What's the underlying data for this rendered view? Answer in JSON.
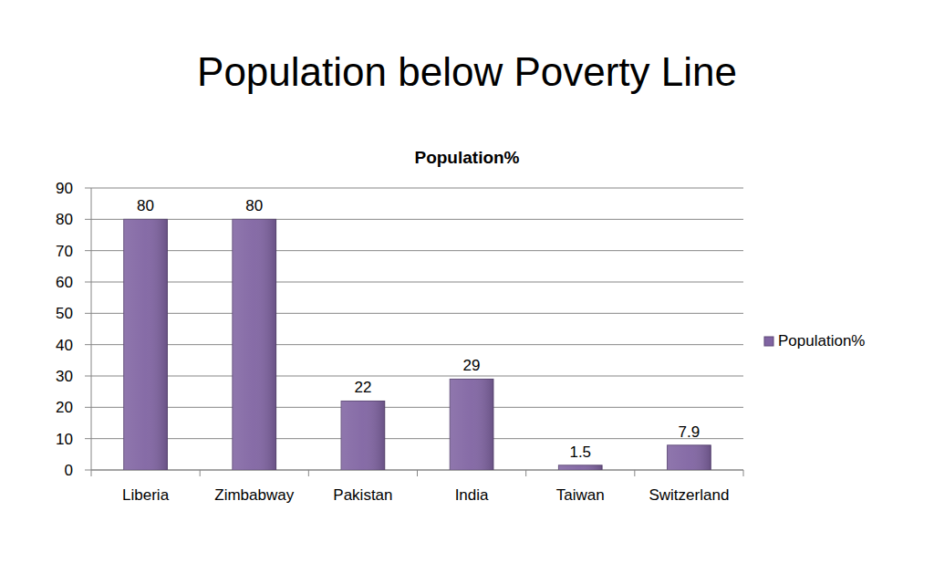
{
  "chart_data": {
    "type": "bar",
    "title": "Population below Poverty Line",
    "subtitle": "Population%",
    "categories": [
      "Liberia",
      "Zimbabway",
      "Pakistan",
      "India",
      "Taiwan",
      "Switzerland"
    ],
    "series": [
      {
        "name": "Population%",
        "color": "#8064a2",
        "values": [
          80,
          80,
          22,
          29,
          1.5,
          7.9
        ]
      }
    ],
    "ylim": [
      0,
      90
    ],
    "yticks": [
      0,
      10,
      20,
      30,
      40,
      50,
      60,
      70,
      80,
      90
    ],
    "grid": true,
    "legend": "right",
    "data_labels": true
  }
}
